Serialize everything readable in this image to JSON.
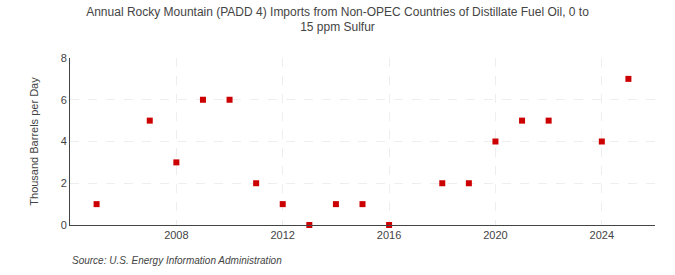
{
  "chart_data": {
    "type": "scatter",
    "title": "Annual Rocky Mountain (PADD 4) Imports from Non-OPEC Countries of Distillate Fuel Oil, 0 to\n15 ppm Sulfur",
    "ylabel": "Thousand Barrels per Day",
    "annotations": [
      "Source: U.S. Energy Information Administration"
    ],
    "x": [
      2005,
      2007,
      2008,
      2009,
      2010,
      2011,
      2012,
      2013,
      2014,
      2015,
      2016,
      2018,
      2019,
      2020,
      2021,
      2022,
      2024,
      2025
    ],
    "values": [
      1,
      5,
      3,
      6,
      6,
      2,
      1,
      0,
      1,
      1,
      0,
      2,
      2,
      4,
      5,
      5,
      4,
      7
    ],
    "color": "#cc0000",
    "marker": "square",
    "xlim": [
      2004,
      2026
    ],
    "ylim": [
      0,
      8
    ],
    "xticks": [
      2008,
      2012,
      2016,
      2020,
      2024
    ],
    "yticks": [
      0,
      2,
      4,
      6,
      8
    ],
    "grid": true
  }
}
